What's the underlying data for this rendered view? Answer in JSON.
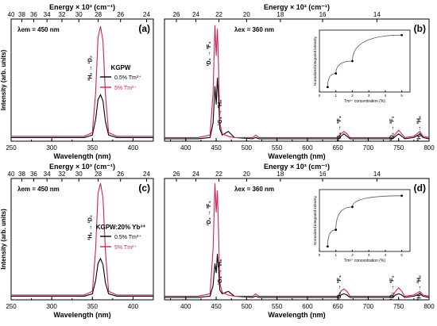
{
  "panels": [
    {
      "letter": "(a)",
      "excitation": "λem = 450 nm",
      "top_axis_title": "Energy × 10³ (cm⁻¹)",
      "top_ticks": [
        "40",
        "38",
        "36",
        "34",
        "32",
        "30",
        "28",
        "26",
        "24"
      ],
      "bottom_axis_title": "Wavelength (nm)",
      "bottom_ticks": [
        "250",
        "300",
        "350",
        "400"
      ],
      "y_axis_title": "Intensity (arb. units)",
      "transitions": [
        {
          "base": "³H₆ → ¹D₂"
        }
      ],
      "legend": {
        "header": "KGPW",
        "entries": [
          "0.5% Tm³⁺",
          "5% Tm³⁺"
        ]
      }
    },
    {
      "letter": "(b)",
      "excitation": "λex = 360 nm",
      "top_axis_title": "Energy × 10³ (cm⁻¹)",
      "top_ticks": [
        "26",
        "24",
        "22",
        "20",
        "18",
        "16",
        "14"
      ],
      "bottom_axis_title": "Wavelength (nm)",
      "bottom_ticks": [
        "400",
        "450",
        "500",
        "550",
        "600",
        "650",
        "700",
        "750",
        "800"
      ],
      "transitions": [
        {
          "text": "¹D₂ → ³F₄"
        },
        {
          "text": "¹G₄ → ³H₆"
        },
        {
          "text": "¹G₄ → ³F₄"
        },
        {
          "text": "¹D₂ → ³F₃"
        },
        {
          "text": "³H₄ → ³H₆"
        }
      ],
      "inset": {
        "xlabel": "Tm³⁺ concentration (%)",
        "ylabel": "Normalized integrated intensity",
        "ticks": [
          "0",
          "1",
          "2",
          "3",
          "4",
          "5"
        ]
      }
    },
    {
      "letter": "(c)",
      "excitation": "λem = 450 nm",
      "top_axis_title": "Energy × 10³ (cm⁻¹)",
      "top_ticks": [
        "40",
        "38",
        "36",
        "34",
        "32",
        "30",
        "28",
        "26",
        "24"
      ],
      "bottom_axis_title": "Wavelength (nm)",
      "bottom_ticks": [
        "250",
        "300",
        "350",
        "400"
      ],
      "y_axis_title": "Intensity (arb. units)",
      "transitions": [
        {
          "base": "³H₆ → ¹D₂"
        }
      ],
      "legend": {
        "header": "KGPW:20% Yb³⁺",
        "entries": [
          "0.5% Tm³⁺",
          "5% Tm³⁺"
        ]
      }
    },
    {
      "letter": "(d)",
      "excitation": "λex = 360 nm",
      "top_axis_title": "Energy × 10³ (cm⁻¹)",
      "top_ticks": [
        "26",
        "24",
        "22",
        "20",
        "18",
        "16",
        "14"
      ],
      "bottom_axis_title": "Wavelength (nm)",
      "bottom_ticks": [
        "400",
        "450",
        "500",
        "550",
        "600",
        "650",
        "700",
        "750",
        "800"
      ],
      "transitions": [
        {
          "text": "¹D₂ → ³F₄"
        },
        {
          "text": "¹G₄ → ³H₆"
        },
        {
          "text": "¹G₄ → ³F₄"
        },
        {
          "text": "¹D₂ → ³F₃"
        },
        {
          "text": "³H₄ → ³H₆"
        }
      ],
      "inset": {
        "xlabel": "Tm³⁺ concentration (%)",
        "ylabel": "Normalized integrated intensity",
        "ticks": [
          "0",
          "1",
          "2",
          "3",
          "4",
          "5"
        ]
      }
    }
  ],
  "colors": {
    "series_low": "#000000",
    "series_high": "#d6204e",
    "axis": "#000000"
  },
  "chart_data": [
    {
      "type": "line",
      "panel": "(a)",
      "xlabel": "Wavelength (nm)",
      "ylabel": "Intensity (arb. units)",
      "xlim": [
        250,
        425
      ],
      "series": [
        {
          "name": "0.5% Tm³⁺",
          "x": [
            250,
            300,
            340,
            350,
            354,
            357,
            360,
            363,
            366,
            370,
            380,
            400,
            425
          ],
          "y": [
            0.03,
            0.03,
            0.03,
            0.05,
            0.18,
            0.34,
            0.38,
            0.33,
            0.16,
            0.05,
            0.03,
            0.03,
            0.03
          ]
        },
        {
          "name": "5% Tm³⁺",
          "x": [
            250,
            300,
            340,
            350,
            354,
            357,
            360,
            363,
            366,
            370,
            380,
            400,
            425
          ],
          "y": [
            0.04,
            0.04,
            0.04,
            0.07,
            0.4,
            0.85,
            0.94,
            0.82,
            0.38,
            0.07,
            0.04,
            0.04,
            0.04
          ]
        }
      ]
    },
    {
      "type": "line",
      "panel": "(b)",
      "xlabel": "Wavelength (nm)",
      "xlim": [
        365,
        800
      ],
      "series": [
        {
          "name": "0.5% Tm³⁺",
          "x": [
            365,
            420,
            440,
            445,
            448,
            450,
            452,
            454,
            456,
            460,
            470,
            480,
            510,
            515,
            520,
            600,
            650,
            655,
            660,
            665,
            670,
            700,
            740,
            745,
            750,
            755,
            760,
            775,
            785,
            790,
            800
          ],
          "y": [
            0.02,
            0.02,
            0.03,
            0.15,
            0.45,
            0.3,
            0.52,
            0.35,
            0.1,
            0.05,
            0.08,
            0.03,
            0.02,
            0.03,
            0.02,
            0.02,
            0.02,
            0.04,
            0.06,
            0.04,
            0.02,
            0.02,
            0.02,
            0.04,
            0.06,
            0.04,
            0.02,
            0.03,
            0.06,
            0.03,
            0.02
          ]
        },
        {
          "name": "5% Tm³⁺",
          "x": [
            365,
            420,
            440,
            445,
            448,
            450,
            452,
            454,
            456,
            460,
            470,
            480,
            510,
            515,
            520,
            600,
            650,
            655,
            660,
            665,
            670,
            700,
            740,
            745,
            750,
            755,
            760,
            775,
            785,
            790,
            800
          ],
          "y": [
            0.03,
            0.03,
            0.05,
            0.4,
            0.95,
            0.7,
            0.92,
            0.6,
            0.15,
            0.06,
            0.04,
            0.03,
            0.03,
            0.05,
            0.03,
            0.03,
            0.03,
            0.06,
            0.08,
            0.06,
            0.03,
            0.03,
            0.03,
            0.06,
            0.09,
            0.06,
            0.03,
            0.04,
            0.08,
            0.04,
            0.03
          ]
        }
      ],
      "inset": {
        "x": [
          0.5,
          1,
          2,
          5
        ],
        "y": [
          0.08,
          0.3,
          0.5,
          0.92
        ],
        "xlim": [
          0,
          5.5
        ],
        "ylim": [
          0,
          1
        ]
      }
    },
    {
      "type": "line",
      "panel": "(c)",
      "xlabel": "Wavelength (nm)",
      "ylabel": "Intensity (arb. units)",
      "xlim": [
        250,
        425
      ],
      "series": [
        {
          "name": "0.5% Tm³⁺",
          "x": [
            250,
            300,
            340,
            350,
            354,
            357,
            360,
            363,
            366,
            370,
            380,
            400,
            425
          ],
          "y": [
            0.03,
            0.03,
            0.03,
            0.05,
            0.16,
            0.3,
            0.34,
            0.29,
            0.14,
            0.05,
            0.03,
            0.03,
            0.03
          ]
        },
        {
          "name": "5% Tm³⁺",
          "x": [
            250,
            300,
            340,
            350,
            354,
            357,
            360,
            363,
            366,
            370,
            380,
            400,
            425
          ],
          "y": [
            0.04,
            0.04,
            0.04,
            0.07,
            0.42,
            0.88,
            0.96,
            0.84,
            0.4,
            0.07,
            0.04,
            0.04,
            0.04
          ]
        }
      ]
    },
    {
      "type": "line",
      "panel": "(d)",
      "xlabel": "Wavelength (nm)",
      "xlim": [
        365,
        800
      ],
      "series": [
        {
          "name": "0.5% Tm³⁺",
          "x": [
            365,
            420,
            440,
            445,
            448,
            450,
            452,
            454,
            456,
            460,
            470,
            480,
            510,
            515,
            520,
            600,
            650,
            655,
            660,
            665,
            670,
            700,
            740,
            745,
            750,
            755,
            760,
            775,
            785,
            790,
            800
          ],
          "y": [
            0.02,
            0.02,
            0.03,
            0.12,
            0.3,
            0.22,
            0.38,
            0.25,
            0.08,
            0.05,
            0.07,
            0.03,
            0.02,
            0.03,
            0.02,
            0.02,
            0.02,
            0.04,
            0.05,
            0.04,
            0.02,
            0.02,
            0.02,
            0.04,
            0.05,
            0.04,
            0.02,
            0.03,
            0.05,
            0.03,
            0.02
          ]
        },
        {
          "name": "5% Tm³⁺",
          "x": [
            365,
            420,
            440,
            445,
            448,
            450,
            452,
            454,
            456,
            460,
            470,
            480,
            510,
            515,
            520,
            600,
            650,
            655,
            660,
            665,
            670,
            700,
            740,
            745,
            750,
            755,
            760,
            775,
            785,
            790,
            800
          ],
          "y": [
            0.03,
            0.03,
            0.05,
            0.42,
            0.96,
            0.72,
            0.9,
            0.55,
            0.14,
            0.06,
            0.04,
            0.03,
            0.03,
            0.05,
            0.03,
            0.03,
            0.03,
            0.07,
            0.09,
            0.07,
            0.03,
            0.03,
            0.03,
            0.07,
            0.1,
            0.07,
            0.03,
            0.04,
            0.07,
            0.04,
            0.03
          ]
        }
      ],
      "inset": {
        "x": [
          0.5,
          1,
          2,
          5
        ],
        "y": [
          0.08,
          0.35,
          0.72,
          0.9
        ],
        "xlim": [
          0,
          5.5
        ],
        "ylim": [
          0,
          1
        ]
      }
    }
  ]
}
